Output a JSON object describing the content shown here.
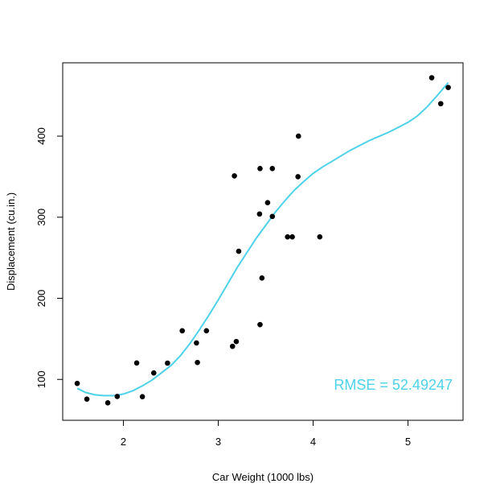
{
  "chart_data": {
    "type": "scatter",
    "title": "",
    "xlabel": "Car Weight (1000 lbs)",
    "ylabel": "Displacement (cu.in.)",
    "xlim": [
      1.36,
      5.58
    ],
    "ylim": [
      49.6,
      490.4
    ],
    "x_ticks": [
      2,
      3,
      4,
      5
    ],
    "y_ticks": [
      100,
      200,
      300,
      400
    ],
    "grid": false,
    "legend": "none",
    "point_color": "#000000",
    "line_color": "#4DD2EA",
    "points": [
      {
        "x": 1.513,
        "y": 95.1
      },
      {
        "x": 1.615,
        "y": 75.7
      },
      {
        "x": 1.835,
        "y": 71.1
      },
      {
        "x": 1.935,
        "y": 79.0
      },
      {
        "x": 2.14,
        "y": 120.3
      },
      {
        "x": 2.2,
        "y": 78.7
      },
      {
        "x": 2.32,
        "y": 108.0
      },
      {
        "x": 2.465,
        "y": 120.1
      },
      {
        "x": 2.62,
        "y": 160.0
      },
      {
        "x": 2.77,
        "y": 145.0
      },
      {
        "x": 2.78,
        "y": 120.9
      },
      {
        "x": 2.875,
        "y": 160.0
      },
      {
        "x": 3.15,
        "y": 140.8
      },
      {
        "x": 3.17,
        "y": 351.0
      },
      {
        "x": 3.19,
        "y": 146.7
      },
      {
        "x": 3.215,
        "y": 258.0
      },
      {
        "x": 3.435,
        "y": 304.0
      },
      {
        "x": 3.44,
        "y": 167.6
      },
      {
        "x": 3.44,
        "y": 360.0
      },
      {
        "x": 3.46,
        "y": 225.0
      },
      {
        "x": 3.52,
        "y": 318.0
      },
      {
        "x": 3.57,
        "y": 360.0
      },
      {
        "x": 3.57,
        "y": 301.0
      },
      {
        "x": 3.73,
        "y": 275.8
      },
      {
        "x": 3.78,
        "y": 275.8
      },
      {
        "x": 3.84,
        "y": 350.0
      },
      {
        "x": 3.845,
        "y": 400.0
      },
      {
        "x": 4.07,
        "y": 275.8
      },
      {
        "x": 5.25,
        "y": 472.0
      },
      {
        "x": 5.345,
        "y": 440.0
      },
      {
        "x": 5.424,
        "y": 460.0
      }
    ],
    "fit_line": [
      {
        "x": 1.513,
        "y": 89
      },
      {
        "x": 1.6,
        "y": 84
      },
      {
        "x": 1.7,
        "y": 81
      },
      {
        "x": 1.8,
        "y": 80
      },
      {
        "x": 1.9,
        "y": 80
      },
      {
        "x": 2.0,
        "y": 82
      },
      {
        "x": 2.1,
        "y": 86
      },
      {
        "x": 2.2,
        "y": 92
      },
      {
        "x": 2.3,
        "y": 99
      },
      {
        "x": 2.4,
        "y": 108
      },
      {
        "x": 2.5,
        "y": 117
      },
      {
        "x": 2.6,
        "y": 129
      },
      {
        "x": 2.7,
        "y": 144
      },
      {
        "x": 2.8,
        "y": 161
      },
      {
        "x": 2.9,
        "y": 179
      },
      {
        "x": 3.0,
        "y": 198
      },
      {
        "x": 3.1,
        "y": 218
      },
      {
        "x": 3.2,
        "y": 238
      },
      {
        "x": 3.3,
        "y": 256
      },
      {
        "x": 3.4,
        "y": 274
      },
      {
        "x": 3.5,
        "y": 290
      },
      {
        "x": 3.6,
        "y": 306
      },
      {
        "x": 3.7,
        "y": 320
      },
      {
        "x": 3.8,
        "y": 333
      },
      {
        "x": 3.9,
        "y": 344
      },
      {
        "x": 4.0,
        "y": 354
      },
      {
        "x": 4.1,
        "y": 362
      },
      {
        "x": 4.2,
        "y": 369
      },
      {
        "x": 4.3,
        "y": 376
      },
      {
        "x": 4.4,
        "y": 383
      },
      {
        "x": 4.5,
        "y": 389
      },
      {
        "x": 4.6,
        "y": 395
      },
      {
        "x": 4.7,
        "y": 400
      },
      {
        "x": 4.8,
        "y": 405
      },
      {
        "x": 4.9,
        "y": 411
      },
      {
        "x": 5.0,
        "y": 417
      },
      {
        "x": 5.1,
        "y": 425
      },
      {
        "x": 5.2,
        "y": 436
      },
      {
        "x": 5.3,
        "y": 449
      },
      {
        "x": 5.424,
        "y": 466
      }
    ],
    "annotation": "RMSE = 52.49247"
  }
}
